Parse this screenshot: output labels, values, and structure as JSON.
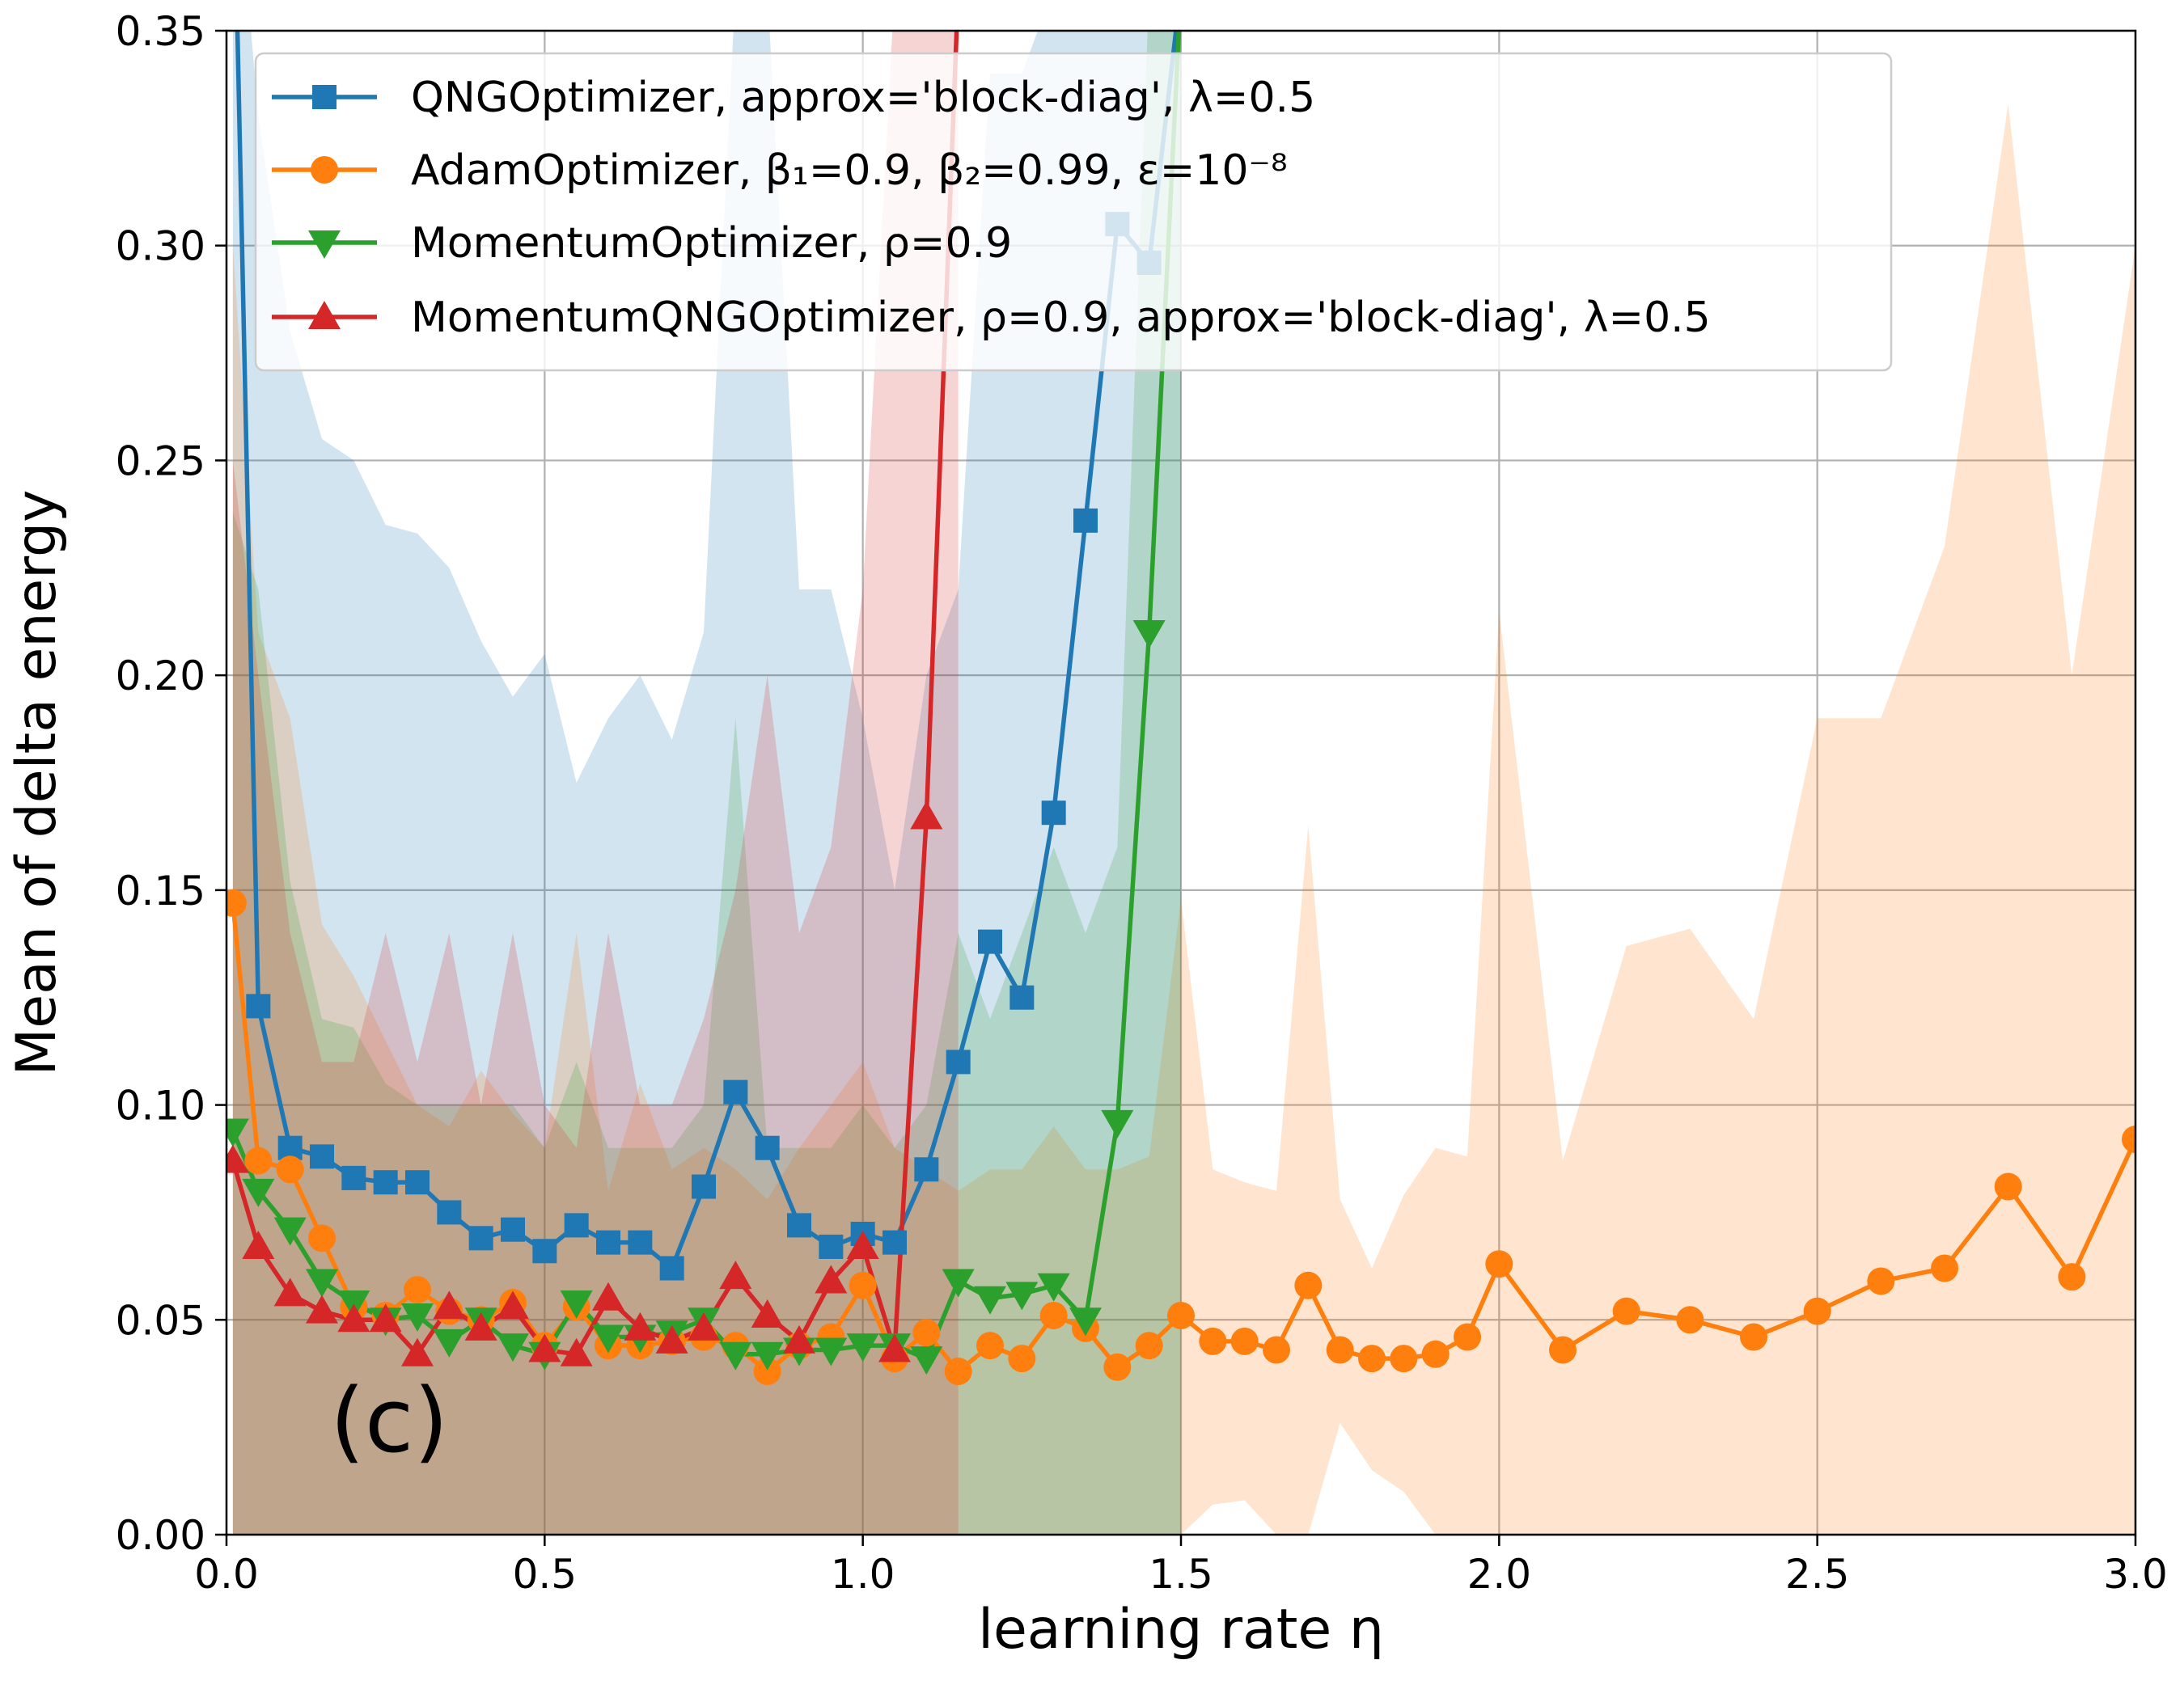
{
  "chart_data": {
    "type": "line",
    "panel_label": "(c)",
    "xlabel": "learning rate η",
    "ylabel": "Mean of delta energy",
    "xlim": [
      0.0,
      3.0
    ],
    "ylim": [
      0.0,
      0.35
    ],
    "xticks": [
      0.0,
      0.5,
      1.0,
      1.5,
      2.0,
      2.5,
      3.0
    ],
    "xtick_labels": [
      "0.0",
      "0.5",
      "1.0",
      "1.5",
      "2.0",
      "2.5",
      "3.0"
    ],
    "yticks": [
      0.0,
      0.05,
      0.1,
      0.15,
      0.2,
      0.25,
      0.3,
      0.35
    ],
    "ytick_labels": [
      "0.00",
      "0.05",
      "0.10",
      "0.15",
      "0.20",
      "0.25",
      "0.30",
      "0.35"
    ],
    "grid": true,
    "legend_position": "top-left",
    "series": [
      {
        "name": "QNGOptimizer, approx='block-diag', λ=0.5",
        "color": "#1f77b4",
        "marker": "square",
        "x": [
          0.01,
          0.05,
          0.1,
          0.15,
          0.2,
          0.25,
          0.3,
          0.35,
          0.4,
          0.45,
          0.5,
          0.55,
          0.6,
          0.65,
          0.7,
          0.75,
          0.8,
          0.85,
          0.9,
          0.95,
          1.0,
          1.05,
          1.1,
          1.15,
          1.2,
          1.25,
          1.3,
          1.35,
          1.4,
          1.45,
          1.5
        ],
        "y": [
          0.4,
          0.123,
          0.09,
          0.088,
          0.083,
          0.082,
          0.082,
          0.075,
          0.069,
          0.071,
          0.066,
          0.072,
          0.068,
          0.068,
          0.062,
          0.081,
          0.103,
          0.09,
          0.072,
          0.067,
          0.07,
          0.068,
          0.085,
          0.11,
          0.138,
          0.125,
          0.168,
          0.236,
          0.305,
          0.296,
          0.36
        ],
        "band_upper": [
          0.4,
          0.33,
          0.28,
          0.255,
          0.25,
          0.235,
          0.233,
          0.225,
          0.208,
          0.195,
          0.205,
          0.175,
          0.19,
          0.2,
          0.185,
          0.21,
          0.36,
          0.36,
          0.22,
          0.22,
          0.19,
          0.15,
          0.2,
          0.22,
          0.34,
          0.34,
          0.36,
          0.36,
          0.36,
          0.36,
          0.36
        ],
        "band_lower": [
          0.0,
          0.0,
          0.0,
          0.0,
          0.0,
          0.0,
          0.0,
          0.0,
          0.0,
          0.0,
          0.0,
          0.0,
          0.0,
          0.0,
          0.0,
          0.0,
          0.0,
          0.0,
          0.0,
          0.0,
          0.0,
          0.0,
          0.0,
          0.0,
          0.0,
          0.0,
          0.0,
          0.0,
          0.0,
          0.0,
          0.0
        ]
      },
      {
        "name": "AdamOptimizer, β₁=0.9, β₂=0.99, ε=10⁻⁸",
        "color": "#ff7f0e",
        "marker": "circle",
        "x": [
          0.01,
          0.05,
          0.1,
          0.15,
          0.2,
          0.25,
          0.3,
          0.35,
          0.4,
          0.45,
          0.5,
          0.55,
          0.6,
          0.65,
          0.7,
          0.75,
          0.8,
          0.85,
          0.9,
          0.95,
          1.0,
          1.05,
          1.1,
          1.15,
          1.2,
          1.25,
          1.3,
          1.35,
          1.4,
          1.45,
          1.5,
          1.55,
          1.6,
          1.65,
          1.7,
          1.75,
          1.8,
          1.85,
          1.9,
          1.95,
          2.0,
          2.1,
          2.2,
          2.3,
          2.4,
          2.5,
          2.6,
          2.7,
          2.8,
          2.9,
          3.0
        ],
        "y": [
          0.147,
          0.087,
          0.085,
          0.069,
          0.053,
          0.051,
          0.057,
          0.052,
          0.05,
          0.054,
          0.044,
          0.053,
          0.044,
          0.044,
          0.045,
          0.046,
          0.044,
          0.038,
          0.044,
          0.046,
          0.058,
          0.041,
          0.047,
          0.038,
          0.044,
          0.041,
          0.051,
          0.048,
          0.039,
          0.044,
          0.051,
          0.045,
          0.045,
          0.043,
          0.058,
          0.043,
          0.041,
          0.041,
          0.042,
          0.046,
          0.063,
          0.043,
          0.052,
          0.05,
          0.046,
          0.052,
          0.059,
          0.062,
          0.081,
          0.06,
          0.092
        ],
        "band_upper": [
          0.3,
          0.21,
          0.19,
          0.142,
          0.13,
          0.115,
          0.1,
          0.095,
          0.108,
          0.098,
          0.09,
          0.14,
          0.08,
          0.105,
          0.085,
          0.09,
          0.085,
          0.078,
          0.09,
          0.1,
          0.11,
          0.09,
          0.085,
          0.08,
          0.085,
          0.085,
          0.095,
          0.085,
          0.085,
          0.088,
          0.148,
          0.085,
          0.082,
          0.08,
          0.165,
          0.078,
          0.062,
          0.079,
          0.09,
          0.088,
          0.215,
          0.087,
          0.137,
          0.141,
          0.12,
          0.19,
          0.19,
          0.23,
          0.333,
          0.2,
          0.3
        ],
        "band_lower": [
          0.0,
          0.0,
          0.0,
          0.0,
          0.0,
          0.0,
          0.0,
          0.0,
          0.0,
          0.0,
          0.0,
          0.0,
          0.0,
          0.0,
          0.0,
          0.0,
          0.0,
          0.0,
          0.0,
          0.0,
          0.0,
          0.0,
          0.0,
          0.0,
          0.0,
          0.0,
          0.0,
          0.0,
          0.0,
          0.0,
          0.0,
          0.007,
          0.008,
          0.0,
          0.0,
          0.026,
          0.015,
          0.01,
          0.0,
          0.0,
          0.0,
          0.0,
          0.0,
          0.0,
          0.0,
          0.0,
          0.0,
          0.0,
          0.0,
          0.0,
          0.0
        ]
      },
      {
        "name": "MomentumOptimizer, ρ=0.9",
        "color": "#2ca02c",
        "marker": "triangle-down",
        "x": [
          0.01,
          0.05,
          0.1,
          0.15,
          0.2,
          0.25,
          0.3,
          0.35,
          0.4,
          0.45,
          0.5,
          0.55,
          0.6,
          0.65,
          0.7,
          0.75,
          0.8,
          0.85,
          0.9,
          0.95,
          1.0,
          1.05,
          1.1,
          1.15,
          1.2,
          1.25,
          1.3,
          1.35,
          1.4,
          1.45,
          1.5
        ],
        "y": [
          0.094,
          0.08,
          0.071,
          0.059,
          0.054,
          0.05,
          0.051,
          0.045,
          0.05,
          0.044,
          0.042,
          0.054,
          0.046,
          0.046,
          0.047,
          0.05,
          0.042,
          0.042,
          0.043,
          0.043,
          0.044,
          0.044,
          0.041,
          0.059,
          0.055,
          0.056,
          0.058,
          0.05,
          0.096,
          0.21,
          0.36
        ],
        "band_upper": [
          0.238,
          0.22,
          0.152,
          0.12,
          0.118,
          0.105,
          0.1,
          0.1,
          0.1,
          0.1,
          0.09,
          0.11,
          0.09,
          0.09,
          0.09,
          0.1,
          0.19,
          0.09,
          0.09,
          0.09,
          0.1,
          0.09,
          0.1,
          0.14,
          0.12,
          0.14,
          0.16,
          0.14,
          0.16,
          0.36,
          0.36
        ],
        "band_lower": [
          0.0,
          0.0,
          0.0,
          0.0,
          0.0,
          0.0,
          0.0,
          0.0,
          0.0,
          0.0,
          0.0,
          0.0,
          0.0,
          0.0,
          0.0,
          0.0,
          0.0,
          0.0,
          0.0,
          0.0,
          0.0,
          0.0,
          0.0,
          0.0,
          0.0,
          0.0,
          0.0,
          0.0,
          0.0,
          0.0,
          0.0
        ]
      },
      {
        "name": "MomentumQNGOptimizer, ρ=0.9, approx='block-diag', λ=0.5",
        "color": "#d62728",
        "marker": "triangle-up",
        "x": [
          0.01,
          0.05,
          0.1,
          0.15,
          0.2,
          0.25,
          0.3,
          0.35,
          0.4,
          0.45,
          0.5,
          0.55,
          0.6,
          0.65,
          0.7,
          0.75,
          0.8,
          0.85,
          0.9,
          0.95,
          1.0,
          1.05,
          1.1,
          1.15
        ],
        "y": [
          0.087,
          0.067,
          0.056,
          0.052,
          0.05,
          0.05,
          0.042,
          0.053,
          0.048,
          0.053,
          0.043,
          0.042,
          0.055,
          0.048,
          0.045,
          0.048,
          0.06,
          0.051,
          0.045,
          0.059,
          0.067,
          0.043,
          0.167,
          0.36
        ],
        "band_upper": [
          0.25,
          0.2,
          0.14,
          0.11,
          0.11,
          0.14,
          0.11,
          0.14,
          0.1,
          0.14,
          0.1,
          0.09,
          0.14,
          0.1,
          0.1,
          0.12,
          0.15,
          0.2,
          0.14,
          0.16,
          0.22,
          0.36,
          0.36,
          0.36
        ],
        "band_lower": [
          0.0,
          0.0,
          0.0,
          0.0,
          0.0,
          0.0,
          0.0,
          0.0,
          0.0,
          0.0,
          0.0,
          0.0,
          0.0,
          0.0,
          0.0,
          0.0,
          0.0,
          0.0,
          0.0,
          0.0,
          0.0,
          0.0,
          0.0,
          0.0
        ]
      }
    ]
  }
}
